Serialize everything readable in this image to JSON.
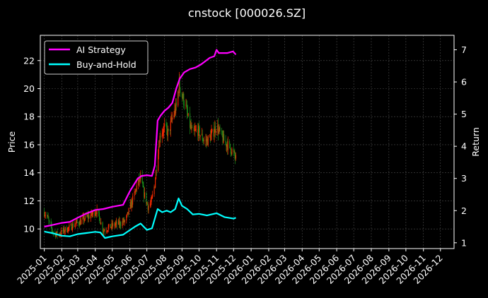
{
  "chart_data": {
    "type": "line",
    "title": "cnstock [000026.SZ]",
    "ylabel_left": "Price",
    "ylabel_right": "Return",
    "xlabel": "",
    "grid": true,
    "legend_position": "top-left",
    "background": "#000000",
    "x_axis": {
      "start": "2024-12-25",
      "end": "2026-12-25",
      "tick_labels": [
        "2025-01",
        "2025-02",
        "2025-03",
        "2025-04",
        "2025-05",
        "2025-06",
        "2025-07",
        "2025-08",
        "2025-09",
        "2025-10",
        "2025-11",
        "2025-12",
        "2026-01",
        "2026-02",
        "2026-03",
        "2026-04",
        "2026-05",
        "2026-06",
        "2026-07",
        "2026-08",
        "2026-09",
        "2026-10",
        "2026-11",
        "2026-12"
      ]
    },
    "y_left": {
      "range": [
        8.6,
        23.8
      ],
      "ticks": [
        10,
        12,
        14,
        16,
        18,
        20,
        22
      ]
    },
    "y_right": {
      "range": [
        0.82,
        7.45
      ],
      "ticks": [
        1,
        2,
        3,
        4,
        5,
        6,
        7
      ]
    },
    "candles": {
      "up_color": "#ff2a00",
      "down_color": "#1a8c1a",
      "anchors": [
        [
          "2025-01-01",
          11.2
        ],
        [
          "2025-01-06",
          10.9
        ],
        [
          "2025-01-12",
          10.1
        ],
        [
          "2025-01-18",
          9.7
        ],
        [
          "2025-01-26",
          9.6
        ],
        [
          "2025-02-05",
          9.9
        ],
        [
          "2025-02-15",
          10.1
        ],
        [
          "2025-02-25",
          10.4
        ],
        [
          "2025-03-05",
          10.5
        ],
        [
          "2025-03-15",
          10.8
        ],
        [
          "2025-03-25",
          11.0
        ],
        [
          "2025-04-03",
          11.3
        ],
        [
          "2025-04-08",
          10.8
        ],
        [
          "2025-04-15",
          9.9
        ],
        [
          "2025-04-25",
          10.1
        ],
        [
          "2025-05-05",
          10.3
        ],
        [
          "2025-05-15",
          10.4
        ],
        [
          "2025-05-25",
          10.6
        ],
        [
          "2025-06-01",
          11.5
        ],
        [
          "2025-06-08",
          12.3
        ],
        [
          "2025-06-15",
          13.3
        ],
        [
          "2025-06-20",
          13.6
        ],
        [
          "2025-06-26",
          12.5
        ],
        [
          "2025-07-03",
          11.6
        ],
        [
          "2025-07-09",
          11.9
        ],
        [
          "2025-07-15",
          13.2
        ],
        [
          "2025-07-20",
          15.4
        ],
        [
          "2025-07-25",
          16.8
        ],
        [
          "2025-08-01",
          17.2
        ],
        [
          "2025-08-08",
          16.8
        ],
        [
          "2025-08-15",
          17.9
        ],
        [
          "2025-08-22",
          18.7
        ],
        [
          "2025-08-27",
          20.4
        ],
        [
          "2025-09-01",
          19.5
        ],
        [
          "2025-09-06",
          19.0
        ],
        [
          "2025-09-12",
          17.8
        ],
        [
          "2025-09-20",
          16.7
        ],
        [
          "2025-09-28",
          17.1
        ],
        [
          "2025-10-05",
          16.6
        ],
        [
          "2025-10-12",
          16.2
        ],
        [
          "2025-10-18",
          16.4
        ],
        [
          "2025-10-25",
          16.8
        ],
        [
          "2025-11-01",
          17.4
        ],
        [
          "2025-11-06",
          16.9
        ],
        [
          "2025-11-12",
          16.4
        ],
        [
          "2025-11-20",
          16.0
        ],
        [
          "2025-11-28",
          15.6
        ],
        [
          "2025-12-05",
          15.0
        ]
      ]
    },
    "series": [
      {
        "name": "AI Strategy",
        "color": "#ff00ff",
        "axis": "right",
        "points": [
          [
            "2025-01-01",
            1.5
          ],
          [
            "2025-01-15",
            1.55
          ],
          [
            "2025-02-01",
            1.62
          ],
          [
            "2025-02-15",
            1.65
          ],
          [
            "2025-03-01",
            1.78
          ],
          [
            "2025-03-15",
            1.9
          ],
          [
            "2025-04-01",
            2.02
          ],
          [
            "2025-04-15",
            2.05
          ],
          [
            "2025-05-01",
            2.12
          ],
          [
            "2025-05-20",
            2.18
          ],
          [
            "2025-06-01",
            2.6
          ],
          [
            "2025-06-15",
            3.0
          ],
          [
            "2025-06-22",
            3.08
          ],
          [
            "2025-07-01",
            3.1
          ],
          [
            "2025-07-10",
            3.08
          ],
          [
            "2025-07-15",
            3.4
          ],
          [
            "2025-07-20",
            4.8
          ],
          [
            "2025-07-25",
            4.95
          ],
          [
            "2025-08-01",
            5.1
          ],
          [
            "2025-08-08",
            5.2
          ],
          [
            "2025-08-15",
            5.35
          ],
          [
            "2025-08-22",
            5.8
          ],
          [
            "2025-08-28",
            6.1
          ],
          [
            "2025-09-05",
            6.3
          ],
          [
            "2025-09-15",
            6.4
          ],
          [
            "2025-09-25",
            6.45
          ],
          [
            "2025-10-05",
            6.55
          ],
          [
            "2025-10-20",
            6.75
          ],
          [
            "2025-10-28",
            6.8
          ],
          [
            "2025-11-01",
            7.0
          ],
          [
            "2025-11-05",
            6.9
          ],
          [
            "2025-11-20",
            6.9
          ],
          [
            "2025-11-30",
            6.95
          ],
          [
            "2025-12-05",
            6.85
          ]
        ]
      },
      {
        "name": "Buy-and-Hold",
        "color": "#00ffff",
        "axis": "right",
        "points": [
          [
            "2025-01-01",
            1.35
          ],
          [
            "2025-01-15",
            1.3
          ],
          [
            "2025-02-01",
            1.22
          ],
          [
            "2025-02-15",
            1.2
          ],
          [
            "2025-03-01",
            1.27
          ],
          [
            "2025-03-15",
            1.3
          ],
          [
            "2025-04-01",
            1.34
          ],
          [
            "2025-04-10",
            1.32
          ],
          [
            "2025-04-18",
            1.15
          ],
          [
            "2025-05-01",
            1.2
          ],
          [
            "2025-05-20",
            1.25
          ],
          [
            "2025-06-10",
            1.5
          ],
          [
            "2025-06-20",
            1.6
          ],
          [
            "2025-07-01",
            1.4
          ],
          [
            "2025-07-10",
            1.45
          ],
          [
            "2025-07-20",
            2.05
          ],
          [
            "2025-07-28",
            1.95
          ],
          [
            "2025-08-05",
            2.0
          ],
          [
            "2025-08-12",
            1.95
          ],
          [
            "2025-08-20",
            2.05
          ],
          [
            "2025-08-26",
            2.38
          ],
          [
            "2025-09-01",
            2.15
          ],
          [
            "2025-09-10",
            2.05
          ],
          [
            "2025-09-20",
            1.88
          ],
          [
            "2025-10-01",
            1.9
          ],
          [
            "2025-10-15",
            1.85
          ],
          [
            "2025-11-01",
            1.92
          ],
          [
            "2025-11-15",
            1.8
          ],
          [
            "2025-12-01",
            1.75
          ],
          [
            "2025-12-05",
            1.78
          ]
        ]
      }
    ]
  }
}
